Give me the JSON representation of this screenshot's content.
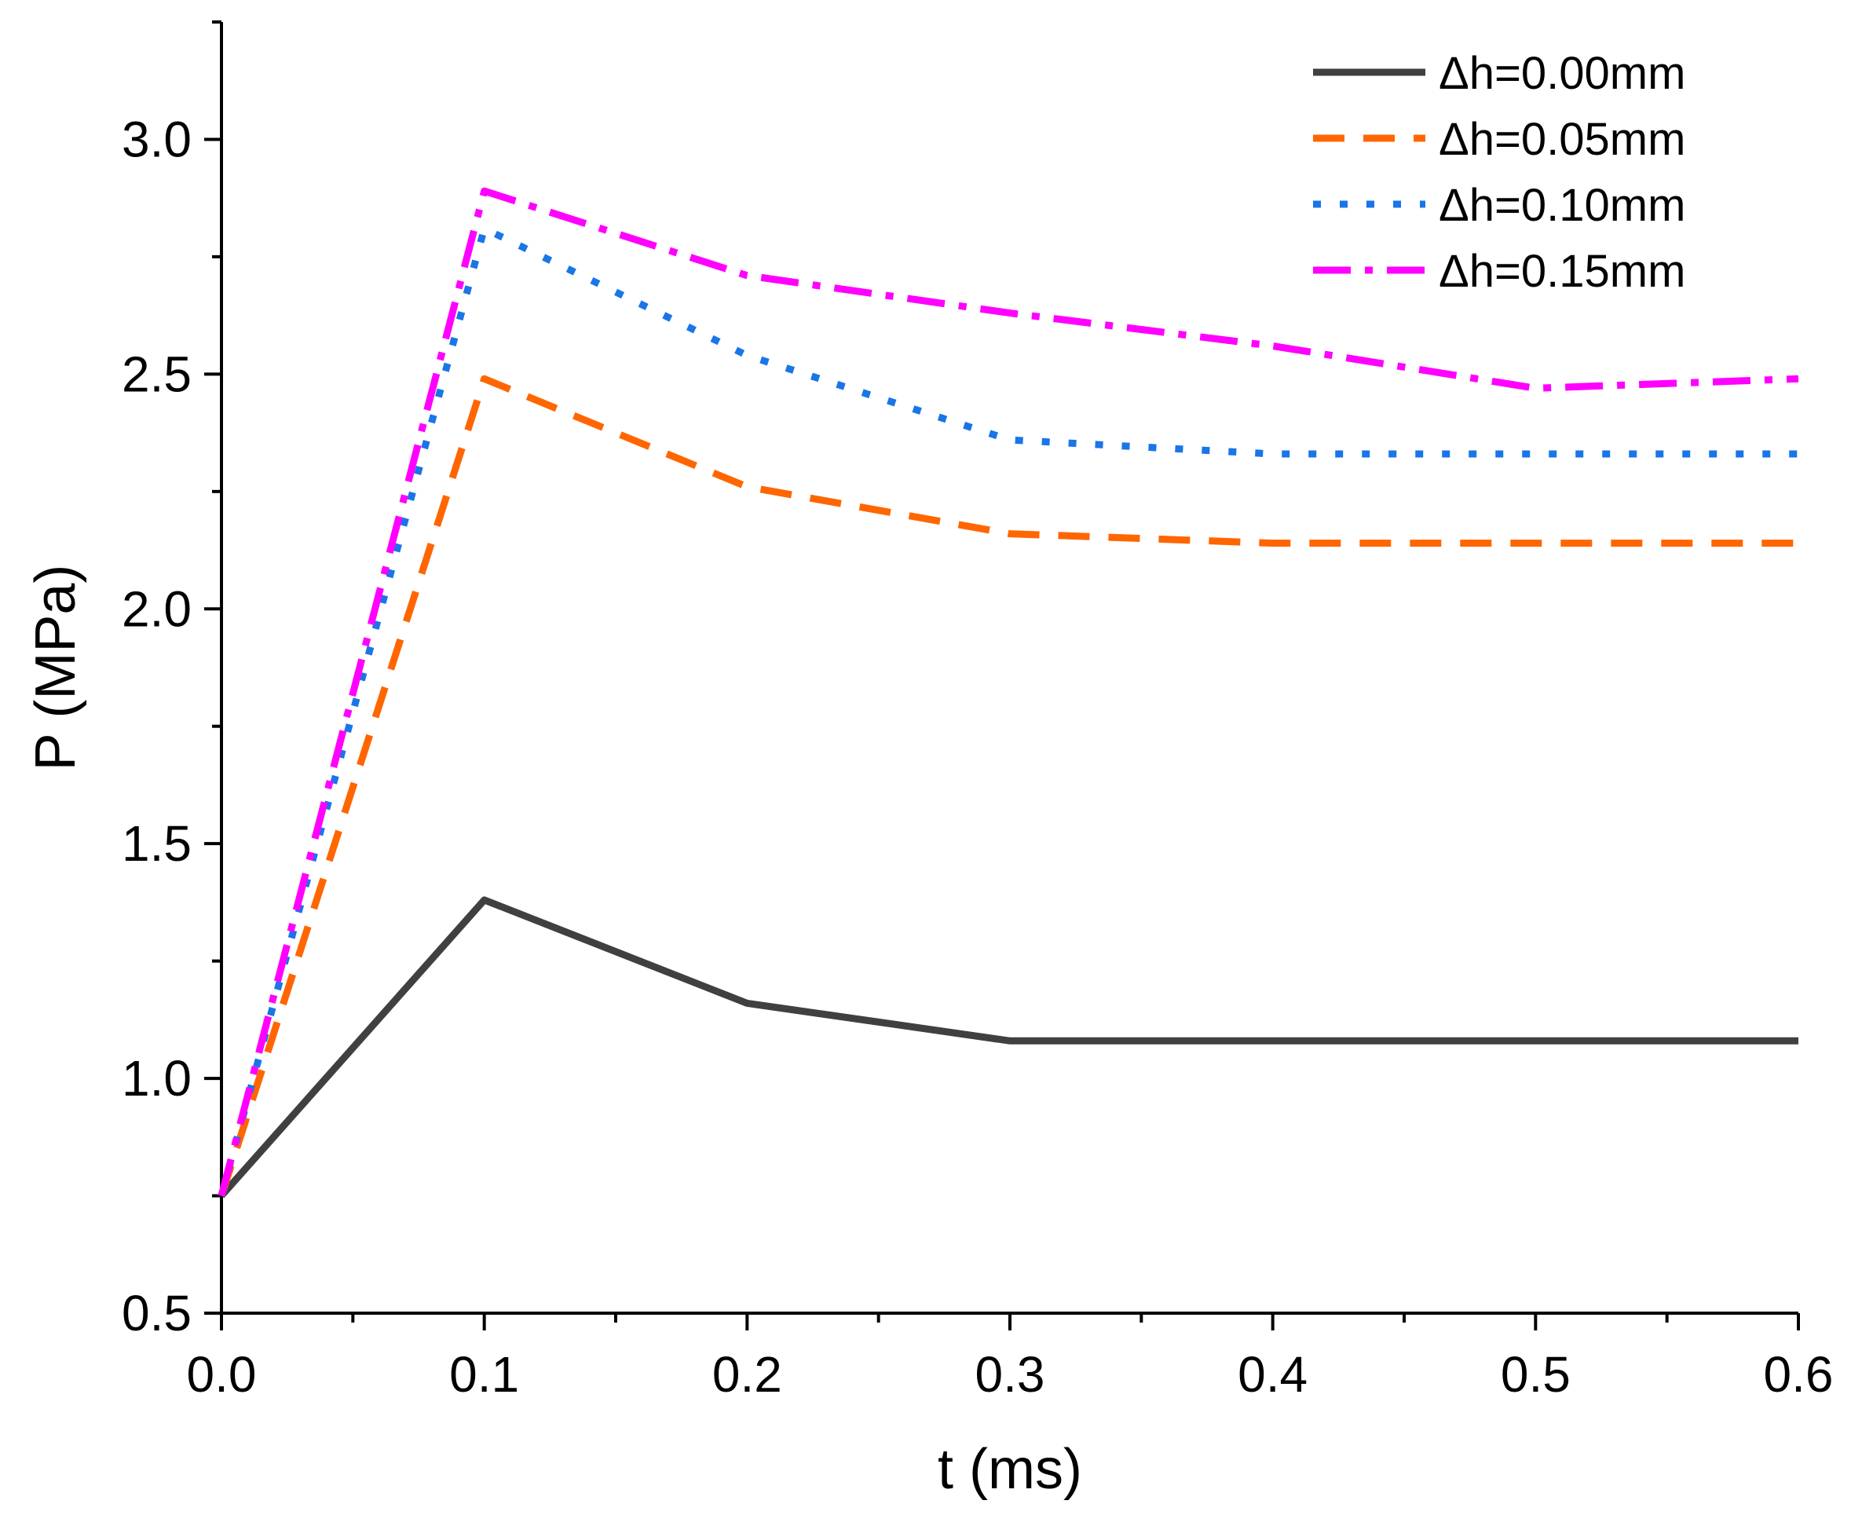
{
  "chart_data": {
    "type": "line",
    "title": "",
    "xlabel": "t (ms)",
    "ylabel": "P (MPa)",
    "xlim": [
      0,
      0.6
    ],
    "ylim": [
      0.5,
      3.25
    ],
    "x_ticks": [
      "0.0",
      "0.1",
      "0.2",
      "0.3",
      "0.4",
      "0.5",
      "0.6"
    ],
    "y_ticks": [
      "0.5",
      "1.0",
      "1.5",
      "2.0",
      "2.5",
      "3.0"
    ],
    "grid": false,
    "legend_position": "top-right",
    "series": [
      {
        "name": "Δh=0.00mm",
        "color": "#404040",
        "style": "solid",
        "x": [
          0,
          0.1,
          0.2,
          0.3,
          0.4,
          0.5,
          0.6
        ],
        "y": [
          0.75,
          1.38,
          1.16,
          1.08,
          1.08,
          1.08,
          1.08
        ]
      },
      {
        "name": "Δh=0.05mm",
        "color": "#ff6600",
        "style": "dash",
        "x": [
          0,
          0.1,
          0.2,
          0.3,
          0.4,
          0.5,
          0.6
        ],
        "y": [
          0.75,
          2.49,
          2.26,
          2.16,
          2.14,
          2.14,
          2.14
        ]
      },
      {
        "name": "Δh=0.10mm",
        "color": "#1a75e8",
        "style": "dot",
        "x": [
          0,
          0.1,
          0.2,
          0.3,
          0.4,
          0.5,
          0.6
        ],
        "y": [
          0.75,
          2.81,
          2.54,
          2.36,
          2.33,
          2.33,
          2.33
        ]
      },
      {
        "name": "Δh=0.15mm",
        "color": "#ff00ff",
        "style": "dashdot",
        "x": [
          0,
          0.1,
          0.2,
          0.3,
          0.4,
          0.5,
          0.6
        ],
        "y": [
          0.75,
          2.89,
          2.71,
          2.63,
          2.56,
          2.47,
          2.49
        ]
      }
    ]
  }
}
